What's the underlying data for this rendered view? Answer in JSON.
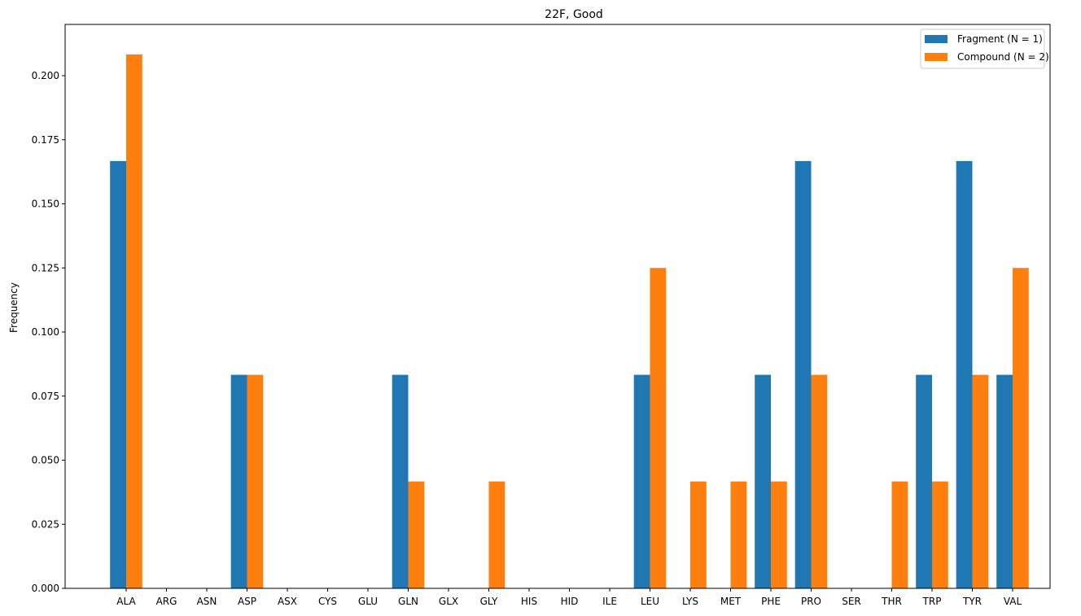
{
  "chart_data": {
    "type": "bar",
    "title": "22F, Good",
    "xlabel": "",
    "ylabel": "Frequency",
    "ylim": [
      0,
      0.22
    ],
    "yticks": [
      "0.000",
      "0.025",
      "0.050",
      "0.075",
      "0.100",
      "0.125",
      "0.150",
      "0.175",
      "0.200"
    ],
    "categories": [
      "ALA",
      "ARG",
      "ASN",
      "ASP",
      "ASX",
      "CYS",
      "GLU",
      "GLN",
      "GLX",
      "GLY",
      "HIS",
      "HID",
      "ILE",
      "LEU",
      "LYS",
      "MET",
      "PHE",
      "PRO",
      "SER",
      "THR",
      "TRP",
      "TYR",
      "VAL"
    ],
    "series": [
      {
        "name": "Fragment (N = 1)",
        "color": "#1f77b4",
        "values": [
          0.1667,
          0,
          0,
          0.0833,
          0,
          0,
          0,
          0.0833,
          0,
          0,
          0,
          0,
          0,
          0.0833,
          0,
          0,
          0.0833,
          0.1667,
          0,
          0,
          0.0833,
          0.1667,
          0.0833
        ]
      },
      {
        "name": "Compound (N = 2)",
        "color": "#ff7f0e",
        "values": [
          0.2083,
          0,
          0,
          0.0833,
          0,
          0,
          0,
          0.0417,
          0,
          0.0417,
          0,
          0,
          0,
          0.125,
          0.0417,
          0.0417,
          0.0417,
          0.0833,
          0,
          0.0417,
          0.0417,
          0.0833,
          0.125
        ]
      }
    ],
    "grid": false,
    "legend": "top-right"
  }
}
